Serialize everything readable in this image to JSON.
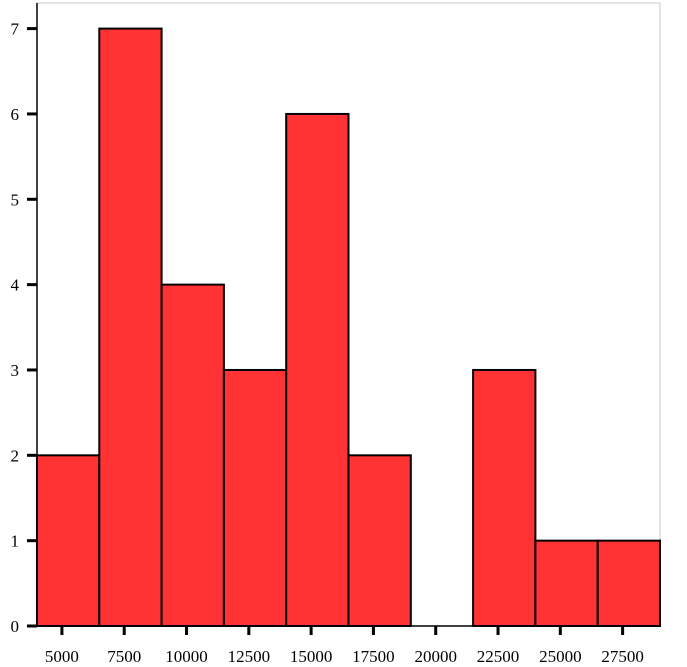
{
  "chart_data": {
    "type": "bar",
    "title": "",
    "xlabel": "",
    "ylabel": "",
    "bin_width": 2500,
    "bins": [
      {
        "start": 4000,
        "end": 6500,
        "count": 2
      },
      {
        "start": 6500,
        "end": 9000,
        "count": 7
      },
      {
        "start": 9000,
        "end": 11500,
        "count": 4
      },
      {
        "start": 11500,
        "end": 14000,
        "count": 3
      },
      {
        "start": 14000,
        "end": 16500,
        "count": 6
      },
      {
        "start": 16500,
        "end": 19000,
        "count": 2
      },
      {
        "start": 19000,
        "end": 21500,
        "count": 0
      },
      {
        "start": 21500,
        "end": 24000,
        "count": 3
      },
      {
        "start": 24000,
        "end": 26500,
        "count": 1
      },
      {
        "start": 26500,
        "end": 29000,
        "count": 1
      }
    ],
    "xlim": [
      4000,
      29000
    ],
    "ylim": [
      0,
      7.3
    ],
    "x_ticks": [
      5000,
      7500,
      10000,
      12500,
      15000,
      17500,
      20000,
      22500,
      25000,
      27500
    ],
    "x_tick_labels": [
      "5000",
      "7500",
      "10000",
      "12500",
      "15000",
      "17500",
      "20000",
      "22500",
      "25000",
      "27500"
    ],
    "y_ticks": [
      0,
      1,
      2,
      3,
      4,
      5,
      6,
      7
    ],
    "y_tick_labels": [
      "0",
      "1",
      "2",
      "3",
      "4",
      "5",
      "6",
      "7"
    ],
    "grid": false,
    "bar_color": "#ff3333",
    "edge_color": "#000000"
  }
}
